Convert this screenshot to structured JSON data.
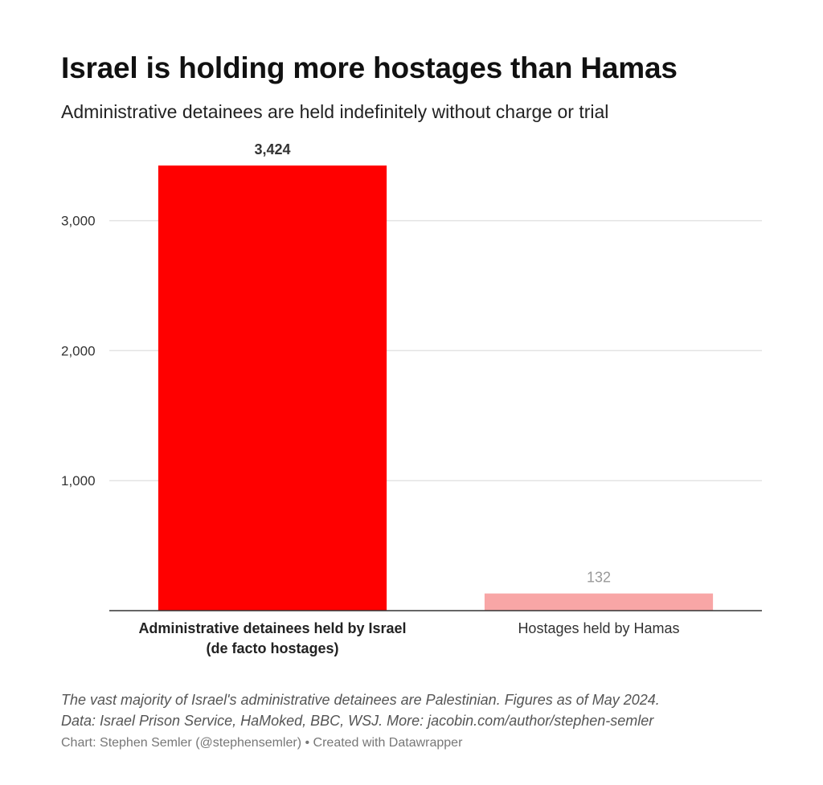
{
  "chart_data": {
    "type": "bar",
    "title": "Israel is holding more hostages than Hamas",
    "subtitle": "Administrative detainees are held indefinitely without charge or trial",
    "categories": [
      "Administrative detainees held by Israel (de facto hostages)",
      "Hostages held by Hamas"
    ],
    "category_label_lines": [
      [
        "Administrative detainees held by Israel",
        "(de facto hostages)"
      ],
      [
        "Hostages held by Hamas"
      ]
    ],
    "values": [
      3424,
      132
    ],
    "value_labels": [
      "3,424",
      "132"
    ],
    "bar_colors": [
      "#ff0000",
      "#f8a6a6"
    ],
    "value_label_colors": [
      "#333333",
      "#999999"
    ],
    "category_label_bold": [
      true,
      false
    ],
    "yticks": [
      1000,
      2000,
      3000
    ],
    "ytick_labels": [
      "1,000",
      "2,000",
      "3,000"
    ],
    "ylim": [
      0,
      3424
    ],
    "xlabel": "",
    "ylabel": "",
    "grid": true,
    "legend": "none"
  },
  "notes": [
    "The vast majority of Israel's administrative detainees are Palestinian. Figures as of May 2024.",
    "Data: Israel Prison Service, HaMoked, BBC, WSJ. More: jacobin.com/author/stephen-semler"
  ],
  "credit": "Chart: Stephen Semler (@stephensemler) • Created with Datawrapper"
}
